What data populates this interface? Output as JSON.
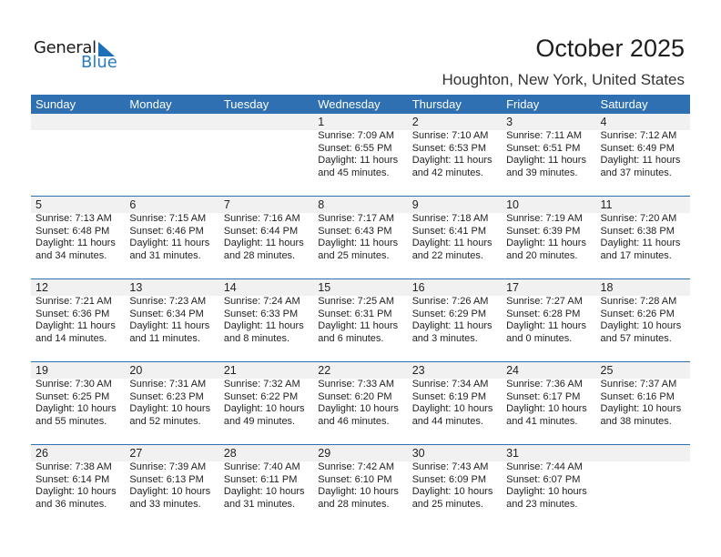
{
  "logo": {
    "word1": "General",
    "word2": "Blue"
  },
  "header": {
    "title": "October 2025",
    "location": "Houghton, New York, United States"
  },
  "colors": {
    "header_bg": "#2e70b1",
    "date_band": "#f1f1f1"
  },
  "weekdays": [
    "Sunday",
    "Monday",
    "Tuesday",
    "Wednesday",
    "Thursday",
    "Friday",
    "Saturday"
  ],
  "weeks": [
    [
      null,
      null,
      null,
      {
        "date": "1",
        "sunrise": "Sunrise: 7:09 AM",
        "sunset": "Sunset: 6:55 PM",
        "daylight1": "Daylight: 11 hours",
        "daylight2": "and 45 minutes."
      },
      {
        "date": "2",
        "sunrise": "Sunrise: 7:10 AM",
        "sunset": "Sunset: 6:53 PM",
        "daylight1": "Daylight: 11 hours",
        "daylight2": "and 42 minutes."
      },
      {
        "date": "3",
        "sunrise": "Sunrise: 7:11 AM",
        "sunset": "Sunset: 6:51 PM",
        "daylight1": "Daylight: 11 hours",
        "daylight2": "and 39 minutes."
      },
      {
        "date": "4",
        "sunrise": "Sunrise: 7:12 AM",
        "sunset": "Sunset: 6:49 PM",
        "daylight1": "Daylight: 11 hours",
        "daylight2": "and 37 minutes."
      }
    ],
    [
      {
        "date": "5",
        "sunrise": "Sunrise: 7:13 AM",
        "sunset": "Sunset: 6:48 PM",
        "daylight1": "Daylight: 11 hours",
        "daylight2": "and 34 minutes."
      },
      {
        "date": "6",
        "sunrise": "Sunrise: 7:15 AM",
        "sunset": "Sunset: 6:46 PM",
        "daylight1": "Daylight: 11 hours",
        "daylight2": "and 31 minutes."
      },
      {
        "date": "7",
        "sunrise": "Sunrise: 7:16 AM",
        "sunset": "Sunset: 6:44 PM",
        "daylight1": "Daylight: 11 hours",
        "daylight2": "and 28 minutes."
      },
      {
        "date": "8",
        "sunrise": "Sunrise: 7:17 AM",
        "sunset": "Sunset: 6:43 PM",
        "daylight1": "Daylight: 11 hours",
        "daylight2": "and 25 minutes."
      },
      {
        "date": "9",
        "sunrise": "Sunrise: 7:18 AM",
        "sunset": "Sunset: 6:41 PM",
        "daylight1": "Daylight: 11 hours",
        "daylight2": "and 22 minutes."
      },
      {
        "date": "10",
        "sunrise": "Sunrise: 7:19 AM",
        "sunset": "Sunset: 6:39 PM",
        "daylight1": "Daylight: 11 hours",
        "daylight2": "and 20 minutes."
      },
      {
        "date": "11",
        "sunrise": "Sunrise: 7:20 AM",
        "sunset": "Sunset: 6:38 PM",
        "daylight1": "Daylight: 11 hours",
        "daylight2": "and 17 minutes."
      }
    ],
    [
      {
        "date": "12",
        "sunrise": "Sunrise: 7:21 AM",
        "sunset": "Sunset: 6:36 PM",
        "daylight1": "Daylight: 11 hours",
        "daylight2": "and 14 minutes."
      },
      {
        "date": "13",
        "sunrise": "Sunrise: 7:23 AM",
        "sunset": "Sunset: 6:34 PM",
        "daylight1": "Daylight: 11 hours",
        "daylight2": "and 11 minutes."
      },
      {
        "date": "14",
        "sunrise": "Sunrise: 7:24 AM",
        "sunset": "Sunset: 6:33 PM",
        "daylight1": "Daylight: 11 hours",
        "daylight2": "and 8 minutes."
      },
      {
        "date": "15",
        "sunrise": "Sunrise: 7:25 AM",
        "sunset": "Sunset: 6:31 PM",
        "daylight1": "Daylight: 11 hours",
        "daylight2": "and 6 minutes."
      },
      {
        "date": "16",
        "sunrise": "Sunrise: 7:26 AM",
        "sunset": "Sunset: 6:29 PM",
        "daylight1": "Daylight: 11 hours",
        "daylight2": "and 3 minutes."
      },
      {
        "date": "17",
        "sunrise": "Sunrise: 7:27 AM",
        "sunset": "Sunset: 6:28 PM",
        "daylight1": "Daylight: 11 hours",
        "daylight2": "and 0 minutes."
      },
      {
        "date": "18",
        "sunrise": "Sunrise: 7:28 AM",
        "sunset": "Sunset: 6:26 PM",
        "daylight1": "Daylight: 10 hours",
        "daylight2": "and 57 minutes."
      }
    ],
    [
      {
        "date": "19",
        "sunrise": "Sunrise: 7:30 AM",
        "sunset": "Sunset: 6:25 PM",
        "daylight1": "Daylight: 10 hours",
        "daylight2": "and 55 minutes."
      },
      {
        "date": "20",
        "sunrise": "Sunrise: 7:31 AM",
        "sunset": "Sunset: 6:23 PM",
        "daylight1": "Daylight: 10 hours",
        "daylight2": "and 52 minutes."
      },
      {
        "date": "21",
        "sunrise": "Sunrise: 7:32 AM",
        "sunset": "Sunset: 6:22 PM",
        "daylight1": "Daylight: 10 hours",
        "daylight2": "and 49 minutes."
      },
      {
        "date": "22",
        "sunrise": "Sunrise: 7:33 AM",
        "sunset": "Sunset: 6:20 PM",
        "daylight1": "Daylight: 10 hours",
        "daylight2": "and 46 minutes."
      },
      {
        "date": "23",
        "sunrise": "Sunrise: 7:34 AM",
        "sunset": "Sunset: 6:19 PM",
        "daylight1": "Daylight: 10 hours",
        "daylight2": "and 44 minutes."
      },
      {
        "date": "24",
        "sunrise": "Sunrise: 7:36 AM",
        "sunset": "Sunset: 6:17 PM",
        "daylight1": "Daylight: 10 hours",
        "daylight2": "and 41 minutes."
      },
      {
        "date": "25",
        "sunrise": "Sunrise: 7:37 AM",
        "sunset": "Sunset: 6:16 PM",
        "daylight1": "Daylight: 10 hours",
        "daylight2": "and 38 minutes."
      }
    ],
    [
      {
        "date": "26",
        "sunrise": "Sunrise: 7:38 AM",
        "sunset": "Sunset: 6:14 PM",
        "daylight1": "Daylight: 10 hours",
        "daylight2": "and 36 minutes."
      },
      {
        "date": "27",
        "sunrise": "Sunrise: 7:39 AM",
        "sunset": "Sunset: 6:13 PM",
        "daylight1": "Daylight: 10 hours",
        "daylight2": "and 33 minutes."
      },
      {
        "date": "28",
        "sunrise": "Sunrise: 7:40 AM",
        "sunset": "Sunset: 6:11 PM",
        "daylight1": "Daylight: 10 hours",
        "daylight2": "and 31 minutes."
      },
      {
        "date": "29",
        "sunrise": "Sunrise: 7:42 AM",
        "sunset": "Sunset: 6:10 PM",
        "daylight1": "Daylight: 10 hours",
        "daylight2": "and 28 minutes."
      },
      {
        "date": "30",
        "sunrise": "Sunrise: 7:43 AM",
        "sunset": "Sunset: 6:09 PM",
        "daylight1": "Daylight: 10 hours",
        "daylight2": "and 25 minutes."
      },
      {
        "date": "31",
        "sunrise": "Sunrise: 7:44 AM",
        "sunset": "Sunset: 6:07 PM",
        "daylight1": "Daylight: 10 hours",
        "daylight2": "and 23 minutes."
      },
      null
    ]
  ]
}
